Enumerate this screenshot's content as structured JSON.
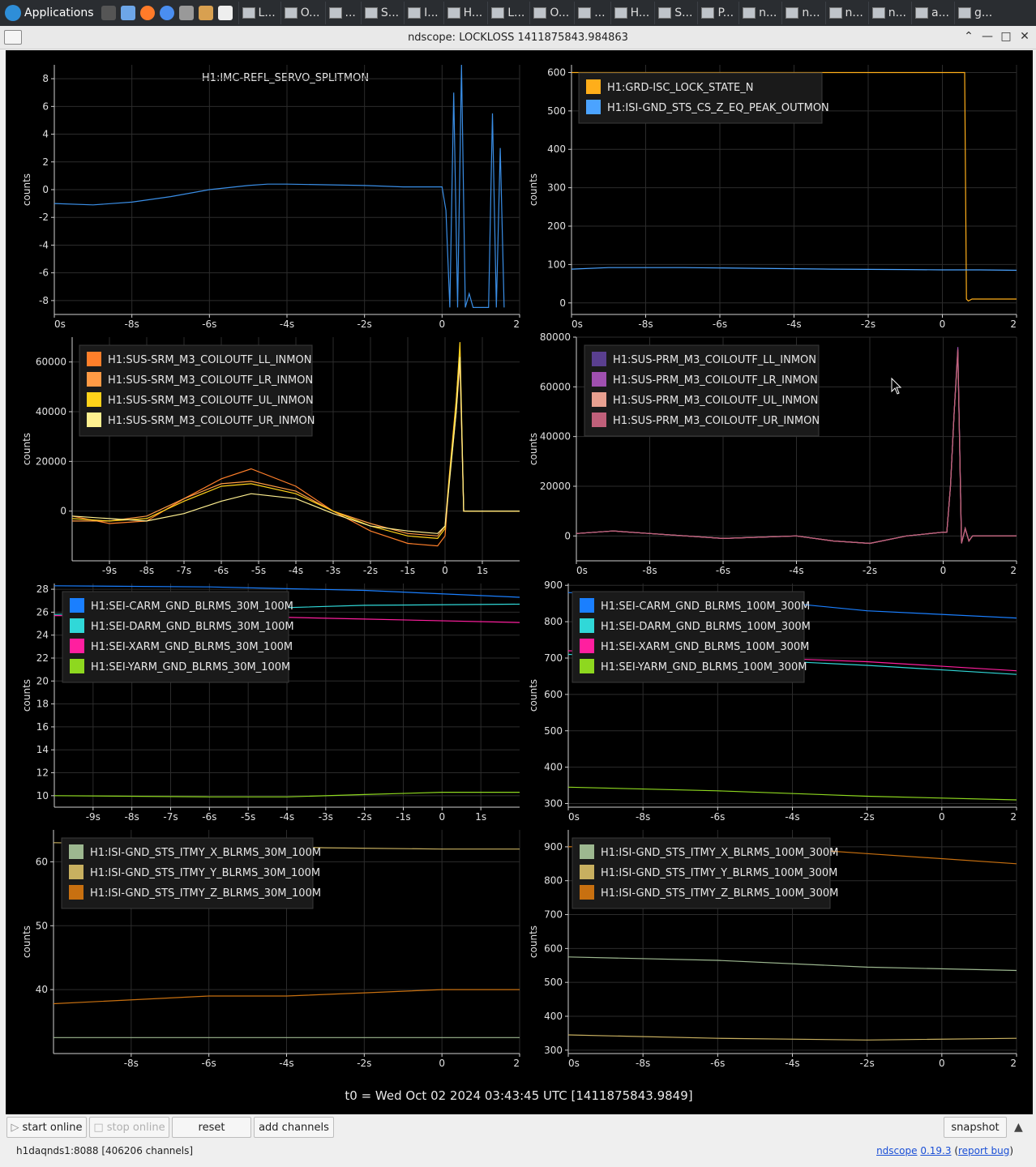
{
  "taskbar": {
    "applications_label": "Applications",
    "tasks": [
      "L...",
      "O...",
      "...",
      "S...",
      "I...",
      "H...",
      "L...",
      "O...",
      "...",
      "H...",
      "S...",
      "P...",
      "n...",
      "n...",
      "n...",
      "n...",
      "a...",
      "g..."
    ]
  },
  "window": {
    "title": "ndscope: LOCKLOSS 1411875843.984863"
  },
  "plots": {
    "p1": {
      "title": "H1:IMC-REFL_SERVO_SPLITMON",
      "ylabel": "counts"
    },
    "p2": {
      "ylabel": "counts"
    },
    "p3": {
      "ylabel": "counts"
    },
    "p4": {
      "ylabel": "counts"
    },
    "p5": {
      "ylabel": "counts"
    },
    "p6": {
      "ylabel": "counts"
    },
    "p7": {
      "ylabel": "counts"
    },
    "p8": {
      "ylabel": "counts"
    }
  },
  "t0_label": "t0 = Wed Oct 02 2024 03:43:45 UTC [1411875843.9849]",
  "buttons": {
    "start_online": "start online",
    "stop_online": "stop online",
    "reset": "reset",
    "add_channels": "add channels",
    "snapshot": "snapshot"
  },
  "status": {
    "server": "h1daqnds1:8088  [406206 channels]",
    "app_link": "ndscope",
    "version_link": "0.19.3",
    "report_bug": "report bug"
  },
  "chart_data": [
    {
      "type": "line",
      "title": "H1:IMC-REFL_SERVO_SPLITMON",
      "xlabel": "",
      "ylabel": "counts",
      "xlim": [
        -10,
        2
      ],
      "ylim": [
        -9,
        9
      ],
      "x_ticks": [
        "0s",
        "-8s",
        "-6s",
        "-4s",
        "-2s",
        "0",
        "2"
      ],
      "y_ticks": [
        "8",
        "6",
        "4",
        "2",
        "0",
        "-2",
        "-4",
        "-6",
        "-8"
      ],
      "series": [
        {
          "name": "H1:IMC-REFL_SERVO_SPLITMON",
          "color": "#3a8ee6",
          "x": [
            -10,
            -9,
            -8,
            -7,
            -6,
            -5,
            -4.5,
            -4,
            -3,
            -2,
            -1,
            0,
            0.1,
            0.2,
            0.3,
            0.4,
            0.5,
            0.6,
            0.7,
            0.8,
            0.9,
            1.0,
            1.1,
            1.2,
            1.3,
            1.4,
            1.5,
            1.6
          ],
          "y": [
            -1.0,
            -1.1,
            -0.9,
            -0.5,
            0,
            0.3,
            0.4,
            0.4,
            0.35,
            0.3,
            0.2,
            0.2,
            -1.5,
            -8.5,
            7.0,
            -8.5,
            9.0,
            -8.5,
            -7.5,
            -8.5,
            -8.5,
            -8.5,
            -8.5,
            -8.5,
            5.5,
            -8.5,
            3.0,
            -8.5
          ]
        }
      ]
    },
    {
      "type": "line",
      "xlabel": "",
      "ylabel": "counts",
      "xlim": [
        -10,
        2
      ],
      "ylim": [
        -30,
        620
      ],
      "x_ticks": [
        "0s",
        "-8s",
        "-6s",
        "-4s",
        "-2s",
        "0",
        "2"
      ],
      "y_ticks": [
        "600",
        "500",
        "400",
        "300",
        "200",
        "100",
        "0"
      ],
      "legend": "top-left",
      "series": [
        {
          "name": "H1:GRD-ISC_LOCK_STATE_N",
          "color": "#ffae1a",
          "x": [
            -10,
            0.6,
            0.62,
            0.65,
            0.7,
            0.8,
            2
          ],
          "y": [
            600,
            600,
            360,
            10,
            5,
            10,
            10
          ]
        },
        {
          "name": "H1:ISI-GND_STS_CS_Z_EQ_PEAK_OUTMON",
          "color": "#4ba3ff",
          "x": [
            -10,
            -9,
            -7,
            -5,
            -3,
            -1,
            0,
            1,
            2
          ],
          "y": [
            88,
            92,
            92,
            90,
            88,
            87,
            86,
            86,
            85
          ]
        }
      ]
    },
    {
      "type": "line",
      "xlabel": "",
      "ylabel": "counts",
      "xlim": [
        -10,
        2
      ],
      "ylim": [
        -20000,
        70000
      ],
      "x_ticks": [
        "-9s",
        "-8s",
        "-7s",
        "-6s",
        "-5s",
        "-4s",
        "-3s",
        "-2s",
        "-1s",
        "0",
        "1s"
      ],
      "y_ticks": [
        "60000",
        "40000",
        "20000",
        "0"
      ],
      "legend": "top-left",
      "series": [
        {
          "name": "H1:SUS-SRM_M3_COILOUTF_LL_INMON",
          "color": "#ff7f2a",
          "x": [
            -10,
            -9,
            -8,
            -7,
            -6,
            -5.2,
            -4,
            -3,
            -2,
            -1,
            -0.2,
            0,
            0.1,
            0.3,
            0.4,
            0.5,
            2
          ],
          "y": [
            -2000,
            -5000,
            -4000,
            5000,
            13000,
            17000,
            10000,
            0,
            -8000,
            -13000,
            -14000,
            -10000,
            10000,
            40000,
            60000,
            0,
            0
          ]
        },
        {
          "name": "H1:SUS-SRM_M3_COILOUTF_LR_INMON",
          "color": "#ff9a45",
          "x": [
            -10,
            -9,
            -8,
            -7,
            -6,
            -5.2,
            -4,
            -3,
            -2,
            -1,
            -0.2,
            0,
            0.1,
            0.3,
            0.4,
            0.5,
            2
          ],
          "y": [
            -4000,
            -4000,
            -2000,
            5000,
            11000,
            12000,
            8000,
            0,
            -5000,
            -9000,
            -10000,
            -6000,
            12000,
            45000,
            65000,
            0,
            0
          ]
        },
        {
          "name": "H1:SUS-SRM_M3_COILOUTF_UL_INMON",
          "color": "#ffd21a",
          "x": [
            -10,
            -9,
            -8,
            -7,
            -6,
            -5.2,
            -4,
            -3,
            -2,
            -1,
            -0.2,
            0,
            0.1,
            0.3,
            0.4,
            0.5,
            2
          ],
          "y": [
            -3000,
            -4000,
            -3000,
            4000,
            10000,
            11000,
            7000,
            0,
            -6000,
            -10000,
            -11000,
            -7000,
            11000,
            44000,
            68000,
            0,
            0
          ]
        },
        {
          "name": "H1:SUS-SRM_M3_COILOUTF_UR_INMON",
          "color": "#fff090",
          "x": [
            -10,
            -9,
            -8,
            -7,
            -6,
            -5.2,
            -4,
            -3,
            -2,
            -1,
            -0.2,
            0,
            0.1,
            0.3,
            0.4,
            0.5,
            2
          ],
          "y": [
            -2000,
            -3000,
            -4000,
            -1000,
            4000,
            7000,
            5000,
            -1000,
            -6000,
            -8000,
            -9000,
            -6000,
            9000,
            40000,
            62000,
            0,
            0
          ]
        }
      ]
    },
    {
      "type": "line",
      "xlabel": "",
      "ylabel": "counts",
      "xlim": [
        -10,
        2
      ],
      "ylim": [
        -10000,
        80000
      ],
      "x_ticks": [
        "0s",
        "-8s",
        "-6s",
        "-4s",
        "-2s",
        "0",
        "2"
      ],
      "y_ticks": [
        "80000",
        "60000",
        "40000",
        "20000",
        "0"
      ],
      "legend": "top-left",
      "series": [
        {
          "name": "H1:SUS-PRM_M3_COILOUTF_LL_INMON",
          "color": "#5a3f8f",
          "x": [
            -10,
            -9,
            -8,
            -6,
            -4,
            -3,
            -2,
            -1,
            0,
            0.1,
            0.2,
            0.3,
            0.4,
            0.5,
            0.6,
            0.7,
            0.8,
            2
          ],
          "y": [
            1000,
            2000,
            1000,
            -1000,
            0,
            -2000,
            -3000,
            0,
            1500,
            1500,
            20000,
            50000,
            75000,
            -3000,
            3000,
            -2000,
            0,
            0
          ]
        },
        {
          "name": "H1:SUS-PRM_M3_COILOUTF_LR_INMON",
          "color": "#a050b0",
          "x": [
            -10,
            -9,
            -8,
            -6,
            -4,
            -3,
            -2,
            -1,
            0,
            0.1,
            0.2,
            0.3,
            0.4,
            0.5,
            0.6,
            0.7,
            0.8,
            2
          ],
          "y": [
            1000,
            2000,
            1000,
            -1000,
            0,
            -2000,
            -3000,
            0,
            1500,
            1500,
            20000,
            50000,
            76000,
            -3000,
            3000,
            -2000,
            0,
            0
          ]
        },
        {
          "name": "H1:SUS-PRM_M3_COILOUTF_UL_INMON",
          "color": "#e8a090",
          "x": [
            -10,
            -9,
            -8,
            -6,
            -4,
            -3,
            -2,
            -1,
            0,
            0.1,
            0.2,
            0.3,
            0.4,
            0.5,
            0.6,
            0.7,
            0.8,
            2
          ],
          "y": [
            1000,
            2000,
            1000,
            -1000,
            0,
            -2000,
            -3000,
            0,
            1500,
            1500,
            20000,
            50000,
            74000,
            -3000,
            3000,
            -2000,
            0,
            0
          ]
        },
        {
          "name": "H1:SUS-PRM_M3_COILOUTF_UR_INMON",
          "color": "#c0607a",
          "x": [
            -10,
            -9,
            -8,
            -6,
            -4,
            -3,
            -2,
            -1,
            0,
            0.1,
            0.2,
            0.3,
            0.4,
            0.5,
            0.6,
            0.7,
            0.8,
            2
          ],
          "y": [
            1000,
            2000,
            1000,
            -1000,
            0,
            -2000,
            -3000,
            0,
            1500,
            1500,
            20000,
            50000,
            75000,
            -3000,
            3000,
            -2000,
            0,
            0
          ]
        }
      ]
    },
    {
      "type": "line",
      "xlabel": "",
      "ylabel": "counts",
      "xlim": [
        -10,
        2
      ],
      "ylim": [
        9,
        28.5
      ],
      "x_ticks": [
        "-9s",
        "-8s",
        "-7s",
        "-6s",
        "-5s",
        "-4s",
        "-3s",
        "-2s",
        "-1s",
        "0",
        "1s"
      ],
      "y_ticks": [
        "28",
        "26",
        "24",
        "22",
        "20",
        "18",
        "16",
        "14",
        "12",
        "10"
      ],
      "legend": "top-left",
      "series": [
        {
          "name": "H1:SEI-CARM_GND_BLRMS_30M_100M",
          "color": "#1a7fff",
          "x": [
            -10,
            -6,
            -2,
            2
          ],
          "y": [
            28.3,
            28.2,
            27.9,
            27.3
          ]
        },
        {
          "name": "H1:SEI-DARM_GND_BLRMS_30M_100M",
          "color": "#30d8d8",
          "x": [
            -10,
            -6,
            -2,
            2
          ],
          "y": [
            25.8,
            26.2,
            26.6,
            26.7
          ]
        },
        {
          "name": "H1:SEI-XARM_GND_BLRMS_30M_100M",
          "color": "#ff1f9f",
          "x": [
            -10,
            -6,
            -2,
            2
          ],
          "y": [
            25.7,
            25.7,
            25.4,
            25.1
          ]
        },
        {
          "name": "H1:SEI-YARM_GND_BLRMS_30M_100M",
          "color": "#8ed81f",
          "x": [
            -10,
            -6,
            -4,
            -2,
            0,
            2
          ],
          "y": [
            10.0,
            9.9,
            9.9,
            10.1,
            10.3,
            10.3
          ]
        }
      ]
    },
    {
      "type": "line",
      "xlabel": "",
      "ylabel": "counts",
      "xlim": [
        -10,
        2
      ],
      "ylim": [
        290,
        905
      ],
      "x_ticks": [
        "0s",
        "-8s",
        "-6s",
        "-4s",
        "-2s",
        "0",
        "2"
      ],
      "y_ticks": [
        "900",
        "800",
        "700",
        "600",
        "500",
        "400",
        "300"
      ],
      "legend": "top-left",
      "series": [
        {
          "name": "H1:SEI-CARM_GND_BLRMS_100M_300M",
          "color": "#1a7fff",
          "x": [
            -10,
            -6,
            -4,
            -2,
            2
          ],
          "y": [
            880,
            870,
            850,
            830,
            810
          ]
        },
        {
          "name": "H1:SEI-DARM_GND_BLRMS_100M_300M",
          "color": "#30d8d8",
          "x": [
            -10,
            -6,
            -2,
            2
          ],
          "y": [
            710,
            700,
            680,
            655
          ]
        },
        {
          "name": "H1:SEI-XARM_GND_BLRMS_100M_300M",
          "color": "#ff1f9f",
          "x": [
            -10,
            -6,
            -2,
            2
          ],
          "y": [
            720,
            705,
            690,
            665
          ]
        },
        {
          "name": "H1:SEI-YARM_GND_BLRMS_100M_300M",
          "color": "#8ed81f",
          "x": [
            -10,
            -6,
            -2,
            2
          ],
          "y": [
            345,
            335,
            320,
            310
          ]
        }
      ]
    },
    {
      "type": "line",
      "xlabel": "",
      "ylabel": "counts",
      "xlim": [
        -10,
        2
      ],
      "ylim": [
        30,
        65
      ],
      "x_ticks": [
        "-8s",
        "-6s",
        "-4s",
        "-2s",
        "0",
        "2"
      ],
      "y_ticks": [
        "60",
        "50",
        "40"
      ],
      "legend": "top-left",
      "series": [
        {
          "name": "H1:ISI-GND_STS_ITMY_X_BLRMS_30M_100M",
          "color": "#9db890",
          "x": [
            -10,
            -6,
            -2,
            2
          ],
          "y": [
            32.5,
            32.5,
            32.5,
            32.5
          ]
        },
        {
          "name": "H1:ISI-GND_STS_ITMY_Y_BLRMS_30M_100M",
          "color": "#c8b060",
          "x": [
            -10,
            -6,
            -3,
            0,
            2
          ],
          "y": [
            63.0,
            62.6,
            62.2,
            62.0,
            62.0
          ]
        },
        {
          "name": "H1:ISI-GND_STS_ITMY_Z_BLRMS_30M_100M",
          "color": "#c87010",
          "x": [
            -10,
            -6,
            -4,
            -2,
            0,
            2
          ],
          "y": [
            37.8,
            39.0,
            39.0,
            39.5,
            40.0,
            40.0
          ]
        }
      ]
    },
    {
      "type": "line",
      "xlabel": "",
      "ylabel": "counts",
      "xlim": [
        -10,
        2
      ],
      "ylim": [
        290,
        950
      ],
      "x_ticks": [
        "0s",
        "-8s",
        "-6s",
        "-4s",
        "-2s",
        "0",
        "2"
      ],
      "y_ticks": [
        "900",
        "800",
        "700",
        "600",
        "500",
        "400",
        "300"
      ],
      "legend": "top-left",
      "series": [
        {
          "name": "H1:ISI-GND_STS_ITMY_X_BLRMS_100M_300M",
          "color": "#9db890",
          "x": [
            -10,
            -6,
            -2,
            2
          ],
          "y": [
            575,
            565,
            545,
            535
          ]
        },
        {
          "name": "H1:ISI-GND_STS_ITMY_Y_BLRMS_100M_300M",
          "color": "#c8b060",
          "x": [
            -10,
            -6,
            -2,
            2
          ],
          "y": [
            345,
            335,
            330,
            335
          ]
        },
        {
          "name": "H1:ISI-GND_STS_ITMY_Z_BLRMS_100M_300M",
          "color": "#c87010",
          "x": [
            -10,
            -6,
            -2,
            2
          ],
          "y": [
            900,
            910,
            880,
            850
          ]
        }
      ]
    }
  ]
}
